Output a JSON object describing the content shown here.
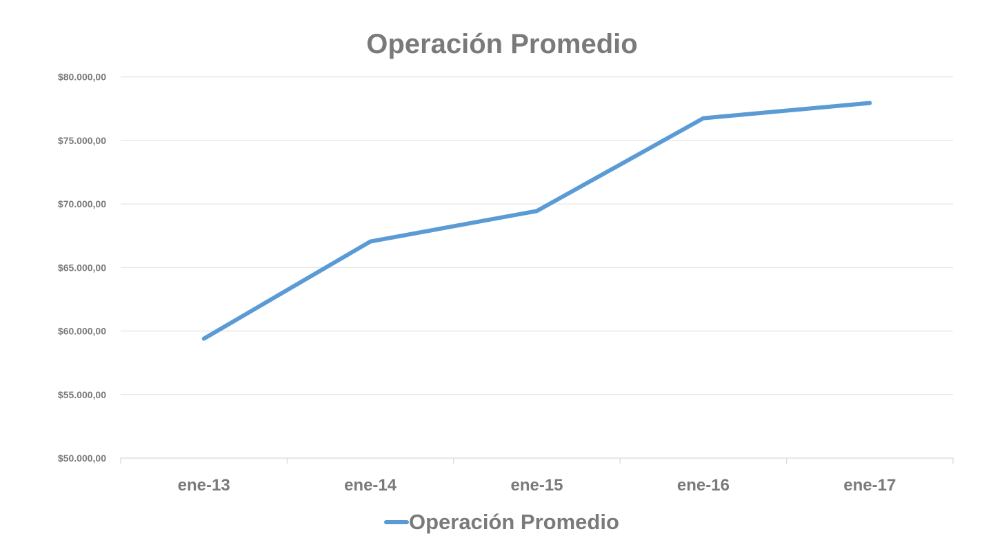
{
  "chart_data": {
    "type": "line",
    "title": "Operación Promedio",
    "xlabel": "",
    "ylabel": "",
    "categories": [
      "ene-13",
      "ene-14",
      "ene-15",
      "ene-16",
      "ene-17"
    ],
    "series": [
      {
        "name": "Operación Promedio",
        "values": [
          59400,
          67050,
          69450,
          76750,
          77950
        ],
        "color": "#5b9bd5"
      }
    ],
    "ylim": [
      50000,
      80000
    ],
    "yticks": [
      50000,
      55000,
      60000,
      65000,
      70000,
      75000,
      80000
    ],
    "ytick_labels": [
      "$50.000,00",
      "$55.000,00",
      "$60.000,00",
      "$65.000,00",
      "$70.000,00",
      "$75.000,00",
      "$80.000,00"
    ],
    "grid": true,
    "legend_position": "bottom"
  }
}
